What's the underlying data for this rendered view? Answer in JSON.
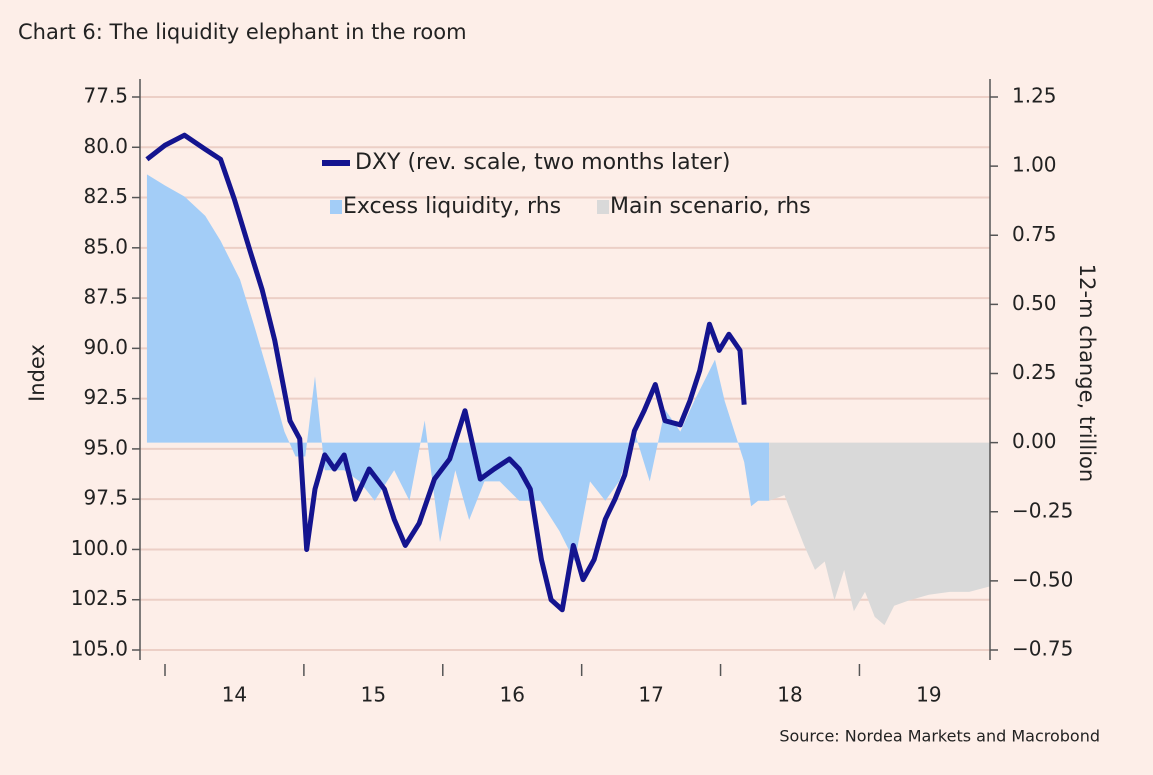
{
  "chart_data": {
    "type": "line",
    "title": "Chart 6: The liquidity elephant in the room",
    "source": "Source: Nordea Markets and Macrobond",
    "y_label": "Index",
    "y2_label": "12-m change, trillion",
    "xlim": [
      2013.82,
      2019.94
    ],
    "xticks": [
      {
        "value": 2014.5,
        "label": "14"
      },
      {
        "value": 2015.5,
        "label": "15"
      },
      {
        "value": 2016.5,
        "label": "16"
      },
      {
        "value": 2017.5,
        "label": "17"
      },
      {
        "value": 2018.5,
        "label": "18"
      },
      {
        "value": 2019.5,
        "label": "19"
      }
    ],
    "x_tick_marks": [
      2014,
      2015,
      2016,
      2017,
      2018,
      2019
    ],
    "ylim": [
      77.5,
      105
    ],
    "y_inverted": true,
    "yticks": [
      {
        "value": 77.5,
        "label": "77.5"
      },
      {
        "value": 80,
        "label": "80.0"
      },
      {
        "value": 82.5,
        "label": "82.5"
      },
      {
        "value": 85,
        "label": "85.0"
      },
      {
        "value": 87.5,
        "label": "87.5"
      },
      {
        "value": 90,
        "label": "90.0"
      },
      {
        "value": 92.5,
        "label": "92.5"
      },
      {
        "value": 95,
        "label": "95.0"
      },
      {
        "value": 97.5,
        "label": "97.5"
      },
      {
        "value": 100,
        "label": "100.0"
      },
      {
        "value": 102.5,
        "label": "102.5"
      },
      {
        "value": 105,
        "label": "105.0"
      }
    ],
    "y2lim": [
      -0.75,
      1.25
    ],
    "y2ticks": [
      {
        "value": 1.25,
        "label": "1.25"
      },
      {
        "value": 1,
        "label": "1.00"
      },
      {
        "value": 0.75,
        "label": "0.75"
      },
      {
        "value": 0.5,
        "label": "0.50"
      },
      {
        "value": 0.25,
        "label": "0.25"
      },
      {
        "value": 0,
        "label": "0.00"
      },
      {
        "value": -0.25,
        "label": "−0.25"
      },
      {
        "value": -0.5,
        "label": "−0.50"
      },
      {
        "value": -0.75,
        "label": "−0.75"
      }
    ],
    "grid": true,
    "series": [
      {
        "name": "Excess liquidity, rhs",
        "color": "#a3cdf7",
        "kind": "area",
        "axis": "y2",
        "x": [
          2013.87,
          2014.0,
          2014.14,
          2014.29,
          2014.4,
          2014.54,
          2014.65,
          2014.76,
          2014.86,
          2014.94,
          2015.01,
          2015.08,
          2015.15,
          2015.29,
          2015.4,
          2015.51,
          2015.65,
          2015.76,
          2015.87,
          2015.98,
          2016.09,
          2016.19,
          2016.3,
          2016.41,
          2016.55,
          2016.7,
          2016.84,
          2016.95,
          2017.06,
          2017.17,
          2017.27,
          2017.38,
          2017.49,
          2017.6,
          2017.71,
          2017.81,
          2017.88,
          2017.96,
          2018.03,
          2018.1,
          2018.17,
          2018.22,
          2018.27,
          2018.35
        ],
        "values": [
          0.97,
          0.93,
          0.89,
          0.82,
          0.73,
          0.59,
          0.41,
          0.22,
          0.04,
          -0.05,
          -0.05,
          0.24,
          -0.1,
          -0.1,
          -0.14,
          -0.21,
          -0.1,
          -0.21,
          0.08,
          -0.36,
          -0.1,
          -0.28,
          -0.14,
          -0.14,
          -0.21,
          -0.21,
          -0.32,
          -0.43,
          -0.14,
          -0.21,
          -0.14,
          0.04,
          -0.14,
          0.12,
          0.04,
          0.15,
          0.22,
          0.3,
          0.15,
          0.04,
          -0.07,
          -0.23,
          -0.21,
          -0.21
        ]
      },
      {
        "name": "Main scenario, rhs",
        "color": "#d9d9d9",
        "kind": "area",
        "axis": "y2",
        "x": [
          2018.35,
          2018.46,
          2018.53,
          2018.6,
          2018.68,
          2018.75,
          2018.82,
          2018.89,
          2018.96,
          2019.04,
          2019.11,
          2019.18,
          2019.25,
          2019.36,
          2019.5,
          2019.65,
          2019.79,
          2019.94
        ],
        "values": [
          -0.21,
          -0.19,
          -0.28,
          -0.37,
          -0.46,
          -0.43,
          -0.57,
          -0.46,
          -0.61,
          -0.54,
          -0.63,
          -0.66,
          -0.59,
          -0.57,
          -0.55,
          -0.54,
          -0.54,
          -0.52
        ]
      },
      {
        "name": "DXY (rev. scale, two months later)",
        "color": "#14148f",
        "kind": "line",
        "axis": "y",
        "x": [
          2013.87,
          2014.0,
          2014.14,
          2014.29,
          2014.4,
          2014.5,
          2014.61,
          2014.7,
          2014.79,
          2014.9,
          2014.97,
          2015.02,
          2015.08,
          2015.15,
          2015.22,
          2015.29,
          2015.37,
          2015.47,
          2015.58,
          2015.65,
          2015.73,
          2015.83,
          2015.94,
          2016.05,
          2016.16,
          2016.27,
          2016.37,
          2016.48,
          2016.55,
          2016.63,
          2016.71,
          2016.78,
          2016.86,
          2016.94,
          2017.01,
          2017.09,
          2017.17,
          2017.24,
          2017.31,
          2017.38,
          2017.45,
          2017.53,
          2017.6,
          2017.71,
          2017.78,
          2017.85,
          2017.92,
          2017.99,
          2018.06,
          2018.14,
          2018.17
        ],
        "values": [
          80.6,
          79.9,
          79.4,
          80.1,
          80.6,
          82.6,
          85.1,
          87.1,
          89.6,
          93.6,
          94.5,
          100,
          97,
          95.3,
          96,
          95.3,
          97.5,
          96,
          97,
          98.5,
          99.8,
          98.7,
          96.5,
          95.5,
          93.1,
          96.5,
          96,
          95.5,
          96,
          97,
          100.5,
          102.5,
          103,
          99.8,
          101.5,
          100.5,
          98.5,
          97.5,
          96.3,
          94.1,
          93.1,
          91.8,
          93.6,
          93.8,
          92.6,
          91.1,
          88.8,
          90.1,
          89.3,
          90.1,
          92.8
        ]
      }
    ]
  }
}
